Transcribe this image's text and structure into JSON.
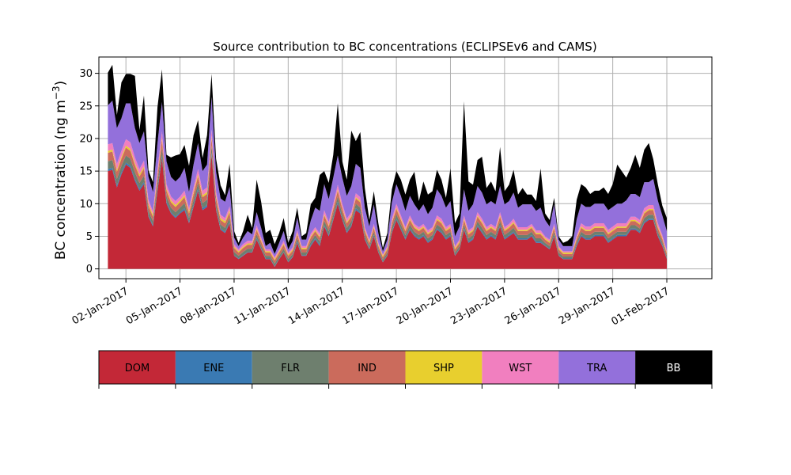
{
  "chart_data": {
    "type": "area",
    "stacked": true,
    "title": "Source contribution to BC concentrations (ECLIPSEv6 and CAMS)",
    "ylabel": "BC concentration (ng m",
    "ylabel_superscript": "−3",
    "ylabel_suffix": ")",
    "ylim": [
      -1.5,
      32.5
    ],
    "yticks": [
      0,
      5,
      10,
      15,
      20,
      25,
      30
    ],
    "xlim_days": [
      -0.5,
      33.5
    ],
    "grid": true,
    "date_ticks": [
      {
        "label": "02-Jan-2017",
        "day": 1
      },
      {
        "label": "05-Jan-2017",
        "day": 4
      },
      {
        "label": "08-Jan-2017",
        "day": 7
      },
      {
        "label": "11-Jan-2017",
        "day": 10
      },
      {
        "label": "14-Jan-2017",
        "day": 13
      },
      {
        "label": "17-Jan-2017",
        "day": 16
      },
      {
        "label": "20-Jan-2017",
        "day": 19
      },
      {
        "label": "23-Jan-2017",
        "day": 22
      },
      {
        "label": "26-Jan-2017",
        "day": 25
      },
      {
        "label": "29-Jan-2017",
        "day": 28
      },
      {
        "label": "01-Feb-2017",
        "day": 31
      }
    ],
    "x_days": [
      0.0,
      0.25,
      0.5,
      0.75,
      1.0,
      1.25,
      1.5,
      1.75,
      2.0,
      2.25,
      2.5,
      2.75,
      3.0,
      3.25,
      3.5,
      3.75,
      4.0,
      4.25,
      4.5,
      4.75,
      5.0,
      5.25,
      5.5,
      5.75,
      6.0,
      6.25,
      6.5,
      6.75,
      7.0,
      7.25,
      7.5,
      7.75,
      8.0,
      8.25,
      8.5,
      8.75,
      9.0,
      9.25,
      9.5,
      9.75,
      10.0,
      10.25,
      10.5,
      10.75,
      11.0,
      11.25,
      11.5,
      11.75,
      12.0,
      12.25,
      12.5,
      12.75,
      13.0,
      13.25,
      13.5,
      13.75,
      14.0,
      14.25,
      14.5,
      14.75,
      15.0,
      15.25,
      15.5,
      15.75,
      16.0,
      16.25,
      16.5,
      16.75,
      17.0,
      17.25,
      17.5,
      17.75,
      18.0,
      18.25,
      18.5,
      18.75,
      19.0,
      19.25,
      19.5,
      19.75,
      20.0,
      20.25,
      20.5,
      20.75,
      21.0,
      21.25,
      21.5,
      21.75,
      22.0,
      22.25,
      22.5,
      22.75,
      23.0,
      23.25,
      23.5,
      23.75,
      24.0,
      24.25,
      24.5,
      24.75,
      25.0,
      25.25,
      25.5,
      25.75,
      26.0,
      26.25,
      26.5,
      26.75,
      27.0,
      27.25,
      27.5,
      27.75,
      28.0,
      28.25,
      28.5,
      28.75,
      29.0,
      29.25,
      29.5,
      29.75,
      30.0,
      30.25,
      30.5,
      30.75,
      31.0
    ],
    "series": [
      {
        "name": "DOM",
        "color": "#c32837",
        "values": [
          15.0,
          15.2,
          12.5,
          14.5,
          16.0,
          15.5,
          13.5,
          12.0,
          13.0,
          8.0,
          6.5,
          12.0,
          17.0,
          10.0,
          8.5,
          7.8,
          8.5,
          9.0,
          7.0,
          9.5,
          12.0,
          9.0,
          9.5,
          17.5,
          9.0,
          6.0,
          5.5,
          7.0,
          2.0,
          1.5,
          2.0,
          2.5,
          2.5,
          4.5,
          3.0,
          1.5,
          1.5,
          0.3,
          1.5,
          2.5,
          1.0,
          1.8,
          4.0,
          2.0,
          2.0,
          3.5,
          4.5,
          3.5,
          6.5,
          5.0,
          7.5,
          10.0,
          7.5,
          5.5,
          6.5,
          9.0,
          8.5,
          4.5,
          3.0,
          5.0,
          2.5,
          1.0,
          2.0,
          5.5,
          7.5,
          6.0,
          4.5,
          6.0,
          5.0,
          4.5,
          5.0,
          4.0,
          4.5,
          6.0,
          5.5,
          4.5,
          5.0,
          2.0,
          3.0,
          6.0,
          4.0,
          4.5,
          6.5,
          5.5,
          4.5,
          5.0,
          4.5,
          6.5,
          4.5,
          5.0,
          5.5,
          4.5,
          4.5,
          4.5,
          5.0,
          4.0,
          4.0,
          3.5,
          3.0,
          5.0,
          2.0,
          1.5,
          1.5,
          1.5,
          3.5,
          5.0,
          4.5,
          4.5,
          5.0,
          5.0,
          5.0,
          4.0,
          4.5,
          5.0,
          5.0,
          5.0,
          6.0,
          6.0,
          5.5,
          7.0,
          7.5,
          7.5,
          5.0,
          3.5,
          1.5
        ]
      },
      {
        "name": "ENE",
        "color": "#3a7ab3",
        "values": [
          0.3,
          0.3,
          0.3,
          0.3,
          0.3,
          0.3,
          0.3,
          0.3,
          0.3,
          0.2,
          0.2,
          0.3,
          0.3,
          0.3,
          0.2,
          0.2,
          0.2,
          0.3,
          0.2,
          0.3,
          0.3,
          0.3,
          0.3,
          0.3,
          0.2,
          0.2,
          0.2,
          0.2,
          0.1,
          0.1,
          0.1,
          0.1,
          0.1,
          0.2,
          0.1,
          0.1,
          0.1,
          0.1,
          0.1,
          0.1,
          0.1,
          0.1,
          0.2,
          0.1,
          0.1,
          0.2,
          0.2,
          0.2,
          0.2,
          0.2,
          0.2,
          0.3,
          0.2,
          0.2,
          0.2,
          0.3,
          0.2,
          0.2,
          0.1,
          0.2,
          0.1,
          0.1,
          0.1,
          0.2,
          0.2,
          0.2,
          0.2,
          0.2,
          0.2,
          0.2,
          0.2,
          0.2,
          0.2,
          0.2,
          0.2,
          0.2,
          0.2,
          0.1,
          0.1,
          0.2,
          0.2,
          0.2,
          0.2,
          0.2,
          0.2,
          0.2,
          0.2,
          0.2,
          0.2,
          0.2,
          0.2,
          0.2,
          0.2,
          0.2,
          0.2,
          0.2,
          0.2,
          0.1,
          0.1,
          0.2,
          0.1,
          0.1,
          0.1,
          0.1,
          0.2,
          0.2,
          0.2,
          0.2,
          0.2,
          0.2,
          0.2,
          0.2,
          0.2,
          0.2,
          0.2,
          0.2,
          0.2,
          0.2,
          0.2,
          0.2,
          0.2,
          0.2,
          0.2,
          0.2,
          0.1
        ]
      },
      {
        "name": "FLR",
        "color": "#6e7f6e",
        "values": [
          1.2,
          1.2,
          1.0,
          1.0,
          1.1,
          1.1,
          1.0,
          0.9,
          1.0,
          0.7,
          0.6,
          0.9,
          1.2,
          0.8,
          0.7,
          0.7,
          0.7,
          0.8,
          0.6,
          0.8,
          0.9,
          0.8,
          0.8,
          1.1,
          0.8,
          0.6,
          0.6,
          0.7,
          0.5,
          0.4,
          0.5,
          0.5,
          0.5,
          0.6,
          0.5,
          0.4,
          0.4,
          0.4,
          0.4,
          0.5,
          0.4,
          0.4,
          0.5,
          0.4,
          0.4,
          0.5,
          0.5,
          0.5,
          0.7,
          0.6,
          0.7,
          0.8,
          0.7,
          0.6,
          0.6,
          0.7,
          0.7,
          0.5,
          0.4,
          0.5,
          0.4,
          0.3,
          0.4,
          0.6,
          0.7,
          0.6,
          0.5,
          0.6,
          0.5,
          0.5,
          0.5,
          0.5,
          0.5,
          0.6,
          0.6,
          0.5,
          0.5,
          0.4,
          0.4,
          0.6,
          0.5,
          0.5,
          0.6,
          0.6,
          0.5,
          0.5,
          0.5,
          0.6,
          0.5,
          0.5,
          0.6,
          0.5,
          0.5,
          0.5,
          0.5,
          0.5,
          0.5,
          0.4,
          0.4,
          0.5,
          0.4,
          0.3,
          0.3,
          0.3,
          0.4,
          0.5,
          0.5,
          0.5,
          0.5,
          0.5,
          0.5,
          0.5,
          0.5,
          0.5,
          0.5,
          0.5,
          0.5,
          0.5,
          0.5,
          0.6,
          0.6,
          0.6,
          0.5,
          0.4,
          0.3
        ]
      },
      {
        "name": "IND",
        "color": "#cb6b5c",
        "values": [
          1.3,
          1.3,
          1.1,
          1.1,
          1.2,
          1.2,
          1.1,
          1.0,
          1.1,
          0.8,
          0.7,
          1.0,
          1.3,
          0.9,
          0.8,
          0.8,
          0.8,
          0.9,
          0.7,
          0.9,
          1.0,
          0.9,
          0.9,
          1.2,
          0.9,
          0.7,
          0.7,
          0.8,
          0.6,
          0.5,
          0.6,
          0.6,
          0.6,
          0.7,
          0.6,
          0.5,
          0.5,
          0.5,
          0.5,
          0.6,
          0.5,
          0.5,
          0.6,
          0.5,
          0.5,
          0.6,
          0.6,
          0.6,
          0.8,
          0.7,
          0.8,
          0.9,
          0.8,
          0.7,
          0.7,
          0.8,
          0.8,
          0.6,
          0.5,
          0.6,
          0.5,
          0.4,
          0.5,
          0.7,
          0.8,
          0.7,
          0.6,
          0.7,
          0.6,
          0.6,
          0.6,
          0.6,
          0.6,
          0.7,
          0.7,
          0.6,
          0.6,
          0.5,
          0.5,
          0.7,
          0.6,
          0.6,
          0.7,
          0.7,
          0.6,
          0.6,
          0.6,
          0.7,
          0.6,
          0.6,
          0.7,
          0.6,
          0.6,
          0.6,
          0.6,
          0.6,
          0.6,
          0.5,
          0.5,
          0.6,
          0.5,
          0.4,
          0.4,
          0.4,
          0.5,
          0.6,
          0.6,
          0.6,
          0.6,
          0.6,
          0.6,
          0.6,
          0.6,
          0.6,
          0.6,
          0.6,
          0.6,
          0.6,
          0.6,
          0.7,
          0.7,
          0.7,
          0.6,
          0.5,
          0.4
        ]
      },
      {
        "name": "SHP",
        "color": "#e8cf2e",
        "values": [
          0.3,
          0.3,
          0.3,
          0.3,
          0.3,
          0.3,
          0.3,
          0.3,
          0.3,
          0.3,
          0.3,
          0.3,
          0.3,
          0.3,
          0.3,
          0.3,
          0.3,
          0.3,
          0.3,
          0.3,
          0.3,
          0.3,
          0.3,
          0.3,
          0.3,
          0.3,
          0.3,
          0.3,
          0.2,
          0.2,
          0.2,
          0.2,
          0.2,
          0.2,
          0.2,
          0.2,
          0.2,
          0.2,
          0.2,
          0.2,
          0.2,
          0.2,
          0.2,
          0.2,
          0.2,
          0.2,
          0.2,
          0.2,
          0.2,
          0.2,
          0.2,
          0.2,
          0.2,
          0.2,
          0.2,
          0.2,
          0.2,
          0.2,
          0.2,
          0.2,
          0.2,
          0.2,
          0.2,
          0.2,
          0.2,
          0.2,
          0.2,
          0.2,
          0.2,
          0.2,
          0.2,
          0.2,
          0.2,
          0.2,
          0.2,
          0.2,
          0.2,
          0.2,
          0.2,
          0.2,
          0.2,
          0.2,
          0.2,
          0.2,
          0.2,
          0.2,
          0.2,
          0.2,
          0.2,
          0.2,
          0.2,
          0.2,
          0.2,
          0.2,
          0.2,
          0.2,
          0.2,
          0.2,
          0.2,
          0.2,
          0.2,
          0.2,
          0.2,
          0.2,
          0.2,
          0.2,
          0.2,
          0.2,
          0.2,
          0.2,
          0.2,
          0.2,
          0.2,
          0.2,
          0.2,
          0.2,
          0.2,
          0.2,
          0.2,
          0.2,
          0.2,
          0.2,
          0.2,
          0.2,
          0.2
        ]
      },
      {
        "name": "WST",
        "color": "#f17fbf",
        "values": [
          1.0,
          1.0,
          0.9,
          0.9,
          1.0,
          1.0,
          0.9,
          0.8,
          0.9,
          0.6,
          0.5,
          0.8,
          1.0,
          0.7,
          0.6,
          0.6,
          0.6,
          0.7,
          0.5,
          0.7,
          0.8,
          0.7,
          0.7,
          1.0,
          0.7,
          0.5,
          0.5,
          0.6,
          0.4,
          0.3,
          0.4,
          0.4,
          0.4,
          0.5,
          0.4,
          0.3,
          0.3,
          0.3,
          0.3,
          0.4,
          0.3,
          0.3,
          0.4,
          0.3,
          0.3,
          0.4,
          0.4,
          0.4,
          0.6,
          0.5,
          0.6,
          0.7,
          0.6,
          0.5,
          0.5,
          0.6,
          0.6,
          0.4,
          0.3,
          0.4,
          0.3,
          0.2,
          0.3,
          0.5,
          0.6,
          0.5,
          0.4,
          0.5,
          0.4,
          0.4,
          0.4,
          0.4,
          0.4,
          0.5,
          0.5,
          0.4,
          0.4,
          0.3,
          0.3,
          0.5,
          0.4,
          0.4,
          0.5,
          0.5,
          0.4,
          0.4,
          0.4,
          0.5,
          0.4,
          0.4,
          0.5,
          0.4,
          0.4,
          0.4,
          0.4,
          0.4,
          0.4,
          0.3,
          0.3,
          0.4,
          0.3,
          0.2,
          0.2,
          0.2,
          0.3,
          0.5,
          0.5,
          0.5,
          0.5,
          0.5,
          0.5,
          0.5,
          0.5,
          0.5,
          0.5,
          0.5,
          0.5,
          0.5,
          0.5,
          0.6,
          0.6,
          0.6,
          0.5,
          0.4,
          0.3
        ]
      },
      {
        "name": "TRA",
        "color": "#9370db",
        "values": [
          6.0,
          6.5,
          5.5,
          5.0,
          5.5,
          6.0,
          4.5,
          4.0,
          4.5,
          3.5,
          3.0,
          4.0,
          4.5,
          3.5,
          3.0,
          3.0,
          3.0,
          3.5,
          2.5,
          3.5,
          4.0,
          3.0,
          3.5,
          5.0,
          3.0,
          2.5,
          2.5,
          3.0,
          1.0,
          0.5,
          1.0,
          1.5,
          1.0,
          2.0,
          1.5,
          0.5,
          1.0,
          0.5,
          1.0,
          1.5,
          0.5,
          1.0,
          2.0,
          1.0,
          1.0,
          2.0,
          3.0,
          3.5,
          4.0,
          3.5,
          4.0,
          4.5,
          4.0,
          3.5,
          4.0,
          4.5,
          4.5,
          3.0,
          2.0,
          3.0,
          1.5,
          0.5,
          1.0,
          2.5,
          3.0,
          3.0,
          2.5,
          3.0,
          3.0,
          2.5,
          3.0,
          2.5,
          3.0,
          4.0,
          3.5,
          3.0,
          3.5,
          1.5,
          2.0,
          4.0,
          3.0,
          3.5,
          4.0,
          4.0,
          3.5,
          3.5,
          3.5,
          4.0,
          3.5,
          3.5,
          4.0,
          3.0,
          3.5,
          3.5,
          3.0,
          3.0,
          3.5,
          2.5,
          2.0,
          3.0,
          1.0,
          0.8,
          0.8,
          0.8,
          2.5,
          3.0,
          3.0,
          3.0,
          3.0,
          3.0,
          3.0,
          3.0,
          3.0,
          3.0,
          3.0,
          3.5,
          3.5,
          3.5,
          3.5,
          4.0,
          3.5,
          4.0,
          3.5,
          3.0,
          3.0
        ]
      },
      {
        "name": "BB",
        "color": "#000000",
        "values": [
          5.0,
          5.5,
          2.0,
          5.5,
          4.5,
          4.5,
          8.0,
          2.0,
          5.5,
          1.0,
          1.5,
          5.5,
          5.0,
          1.0,
          3.0,
          4.0,
          3.5,
          3.5,
          4.0,
          4.5,
          3.5,
          2.0,
          4.5,
          3.5,
          2.0,
          2.0,
          1.0,
          3.5,
          1.0,
          0.5,
          1.0,
          2.5,
          1.0,
          5.0,
          4.0,
          2.0,
          2.0,
          1.5,
          1.5,
          2.0,
          1.0,
          1.5,
          1.5,
          0.5,
          1.0,
          2.5,
          1.5,
          5.5,
          2.0,
          2.5,
          3.5,
          8.0,
          2.5,
          2.5,
          8.5,
          3.5,
          5.5,
          3.0,
          1.0,
          2.0,
          1.5,
          0.5,
          1.0,
          2.0,
          2.0,
          2.5,
          2.5,
          2.5,
          5.0,
          1.5,
          3.5,
          3.0,
          2.5,
          3.0,
          2.5,
          1.5,
          5.0,
          2.0,
          2.0,
          13.5,
          4.5,
          3.0,
          4.0,
          5.5,
          2.5,
          3.0,
          2.0,
          6.0,
          2.0,
          2.5,
          3.5,
          2.0,
          2.5,
          1.5,
          1.5,
          1.5,
          6.0,
          1.0,
          1.0,
          1.0,
          0.5,
          0.5,
          0.8,
          1.5,
          3.0,
          3.0,
          3.0,
          2.0,
          2.0,
          2.0,
          2.5,
          2.5,
          3.5,
          6.0,
          5.0,
          3.5,
          4.0,
          6.0,
          4.5,
          5.0,
          6.0,
          3.0,
          2.5,
          1.5,
          2.0
        ]
      }
    ],
    "legend_order": [
      "DOM",
      "ENE",
      "FLR",
      "IND",
      "SHP",
      "WST",
      "TRA",
      "BB"
    ]
  }
}
